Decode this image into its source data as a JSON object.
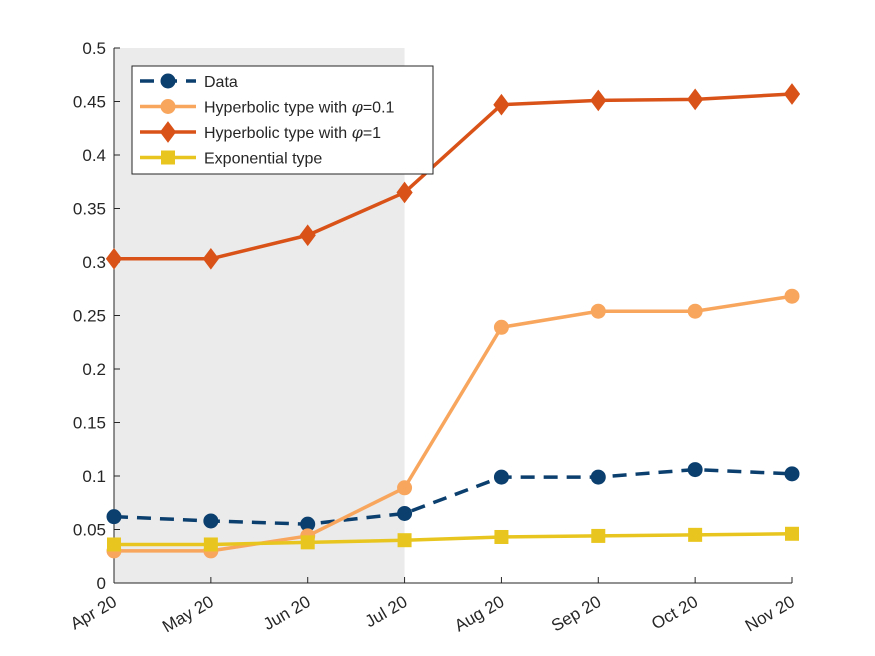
{
  "chart_data": {
    "type": "line",
    "title": "",
    "xlabel": "",
    "ylabel": "",
    "categories": [
      "Apr 20",
      "May 20",
      "Jun 20",
      "Jul 20",
      "Aug 20",
      "Sep 20",
      "Oct 20",
      "Nov 20"
    ],
    "ylim": [
      0,
      0.5
    ],
    "yticks": [
      0,
      0.05,
      0.1,
      0.15,
      0.2,
      0.25,
      0.3,
      0.35,
      0.4,
      0.45,
      0.5
    ],
    "ytick_labels": [
      "0",
      "0.05",
      "0.1",
      "0.15",
      "0.2",
      "0.25",
      "0.3",
      "0.35",
      "0.4",
      "0.45",
      "0.5"
    ],
    "shaded_region": {
      "from": "Apr 20",
      "to": "Jul 20",
      "color": "#ebebeb"
    },
    "grid": false,
    "legend_position": "top-left",
    "series": [
      {
        "name": "Data",
        "color": "#0b3f6e",
        "marker": "circle",
        "dashed": true,
        "values": [
          0.062,
          0.058,
          0.055,
          0.065,
          0.099,
          0.099,
          0.106,
          0.102
        ]
      },
      {
        "name": "Hyperbolic type with φ=0.1",
        "name_prefix": "Hyperbolic type with ",
        "name_symbol": "φ",
        "name_suffix": "=0.1",
        "color": "#f8a65e",
        "marker": "circle",
        "dashed": false,
        "values": [
          0.03,
          0.03,
          0.044,
          0.089,
          0.239,
          0.254,
          0.254,
          0.268
        ]
      },
      {
        "name": "Hyperbolic type with φ=1",
        "name_prefix": "Hyperbolic type with ",
        "name_symbol": "φ",
        "name_suffix": "=1",
        "color": "#d95319",
        "marker": "diamond",
        "dashed": false,
        "values": [
          0.303,
          0.303,
          0.325,
          0.365,
          0.447,
          0.451,
          0.452,
          0.457
        ]
      },
      {
        "name": "Exponential type",
        "color": "#e8c61f",
        "marker": "square",
        "dashed": false,
        "values": [
          0.036,
          0.036,
          0.038,
          0.04,
          0.043,
          0.044,
          0.045,
          0.046
        ]
      }
    ]
  }
}
